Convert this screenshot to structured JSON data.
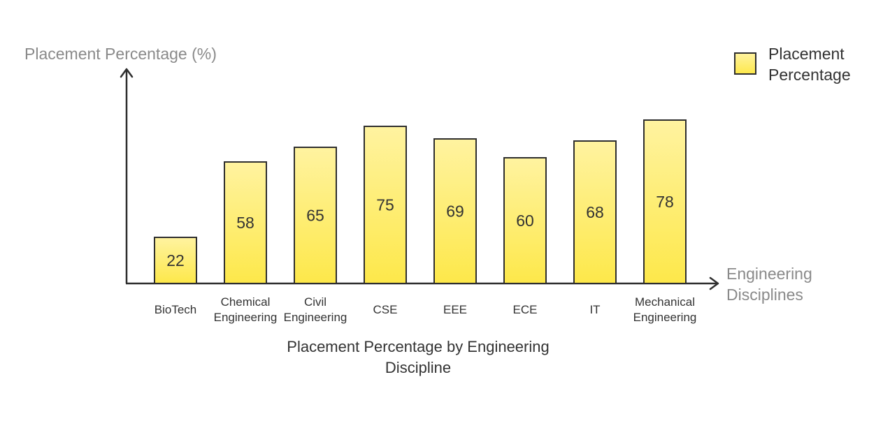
{
  "chart_data": {
    "type": "bar",
    "title_lines": [
      "Placement Percentage by Engineering",
      "Discipline"
    ],
    "ylabel": "Placement Percentage (%)",
    "xlabel_lines": [
      "Engineering",
      "Disciplines"
    ],
    "categories": [
      [
        "BioTech"
      ],
      [
        "Chemical",
        "Engineering"
      ],
      [
        "Civil",
        "Engineering"
      ],
      [
        "CSE"
      ],
      [
        "EEE"
      ],
      [
        "ECE"
      ],
      [
        "IT"
      ],
      [
        "Mechanical",
        "Engineering"
      ]
    ],
    "series": [
      {
        "name_lines": [
          "Placement",
          "Percentage"
        ],
        "values": [
          22,
          58,
          65,
          75,
          69,
          60,
          68,
          78
        ],
        "color": "#fde84a"
      }
    ],
    "ylim": [
      0,
      78
    ],
    "grid": false,
    "legend_position": "top-right"
  },
  "colors": {
    "bar_top": "#fff3a0",
    "bar_bottom": "#fde84a",
    "bar_stroke": "#2e2e2e",
    "axis": "#2e2e2e",
    "axis_title": "#8a8a8a",
    "text": "#333333"
  }
}
